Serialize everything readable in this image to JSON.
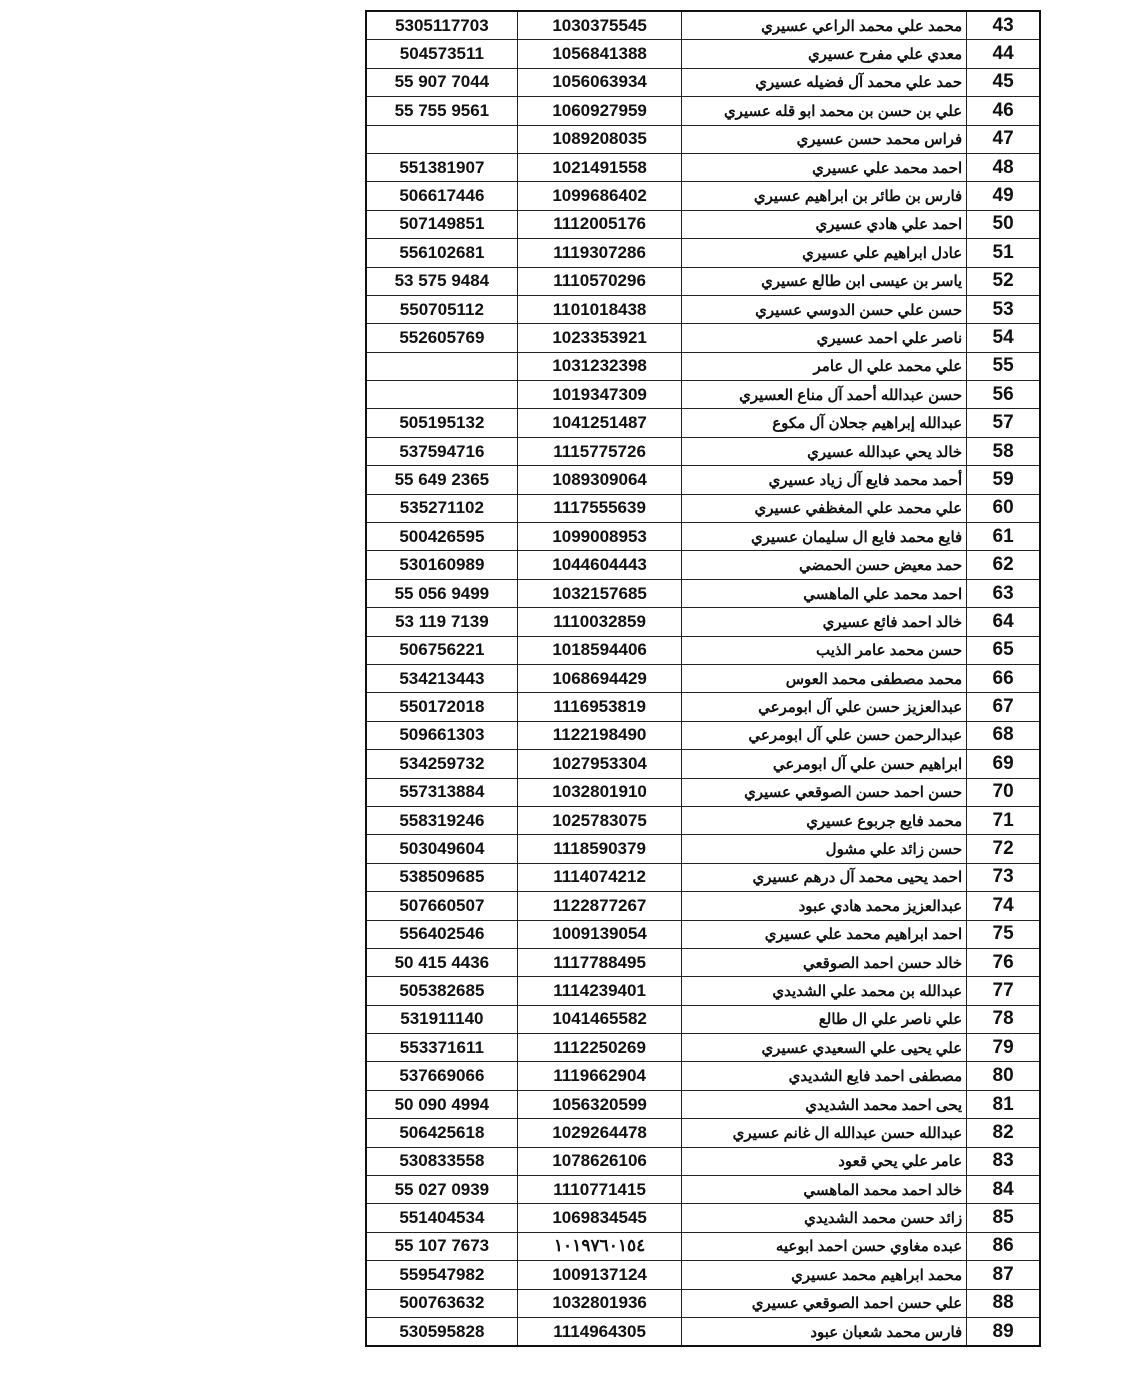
{
  "rows": [
    {
      "no": "43",
      "name": "محمد علي محمد الراعي عسيري",
      "id": "1030375545",
      "phone": "5305117703"
    },
    {
      "no": "44",
      "name": "معدي علي مفرح عسيري",
      "id": "1056841388",
      "phone": "504573511"
    },
    {
      "no": "45",
      "name": "حمد علي محمد آل فضيله عسيري",
      "id": "1056063934",
      "phone": "55 907 7044"
    },
    {
      "no": "46",
      "name": "علي بن حسن بن محمد ابو قله عسيري",
      "id": "1060927959",
      "phone": "55 755 9561"
    },
    {
      "no": "47",
      "name": "فراس محمد حسن عسيري",
      "id": "1089208035",
      "phone": ""
    },
    {
      "no": "48",
      "name": "احمد محمد علي عسيري",
      "id": "1021491558",
      "phone": "551381907"
    },
    {
      "no": "49",
      "name": "فارس بن طائر بن ابراهيم عسيري",
      "id": "1099686402",
      "phone": "506617446"
    },
    {
      "no": "50",
      "name": "احمد علي هادي عسيري",
      "id": "1112005176",
      "phone": "507149851"
    },
    {
      "no": "51",
      "name": "عادل ابراهيم علي عسيري",
      "id": "1119307286",
      "phone": "556102681"
    },
    {
      "no": "52",
      "name": "ياسر بن عيسى ابن طالع عسيري",
      "id": "1110570296",
      "phone": "53 575 9484"
    },
    {
      "no": "53",
      "name": "حسن علي حسن الدوسي عسيري",
      "id": "1101018438",
      "phone": "550705112"
    },
    {
      "no": "54",
      "name": "ناصر علي احمد عسيري",
      "id": "1023353921",
      "phone": "552605769"
    },
    {
      "no": "55",
      "name": "علي محمد علي ال عامر",
      "id": "1031232398",
      "phone": ""
    },
    {
      "no": "56",
      "name": "حسن عبدالله أحمد آل مناع العسيري",
      "id": "1019347309",
      "phone": ""
    },
    {
      "no": "57",
      "name": "عبدالله إبراهيم جحلان آل مكوع",
      "id": "1041251487",
      "phone": "505195132"
    },
    {
      "no": "58",
      "name": "خالد يحي عبدالله عسيري",
      "id": "1115775726",
      "phone": "537594716"
    },
    {
      "no": "59",
      "name": "أحمد محمد فايع آل زياد عسيري",
      "id": "1089309064",
      "phone": "55 649 2365"
    },
    {
      "no": "60",
      "name": "علي محمد علي المغظفي عسيري",
      "id": "1117555639",
      "phone": "535271102"
    },
    {
      "no": "61",
      "name": "فايع محمد فايع ال سليمان عسيري",
      "id": "1099008953",
      "phone": "500426595"
    },
    {
      "no": "62",
      "name": "حمد معيض حسن الحمضي",
      "id": "1044604443",
      "phone": "530160989"
    },
    {
      "no": "63",
      "name": "احمد محمد علي الماهسي",
      "id": "1032157685",
      "phone": "55 056 9499"
    },
    {
      "no": "64",
      "name": "خالد احمد فائع عسيري",
      "id": "1110032859",
      "phone": "53 119 7139"
    },
    {
      "no": "65",
      "name": "حسن محمد عامر الذيب",
      "id": "1018594406",
      "phone": "506756221"
    },
    {
      "no": "66",
      "name": "محمد مصطفى محمد العوس",
      "id": "1068694429",
      "phone": "534213443"
    },
    {
      "no": "67",
      "name": "عبدالعزيز حسن علي آل ابومرعي",
      "id": "1116953819",
      "phone": "550172018"
    },
    {
      "no": "68",
      "name": "عبدالرحمن حسن علي آل ابومرعي",
      "id": "1122198490",
      "phone": "509661303"
    },
    {
      "no": "69",
      "name": "ابراهيم حسن علي آل ابومرعي",
      "id": "1027953304",
      "phone": "534259732"
    },
    {
      "no": "70",
      "name": "حسن احمد حسن الصوقعي عسيري",
      "id": "1032801910",
      "phone": "557313884"
    },
    {
      "no": "71",
      "name": "محمد فايع جربوع عسيري",
      "id": "1025783075",
      "phone": "558319246"
    },
    {
      "no": "72",
      "name": "حسن زائد علي مشول",
      "id": "1118590379",
      "phone": "503049604"
    },
    {
      "no": "73",
      "name": "احمد يحيى محمد آل درهم عسيري",
      "id": "1114074212",
      "phone": "538509685"
    },
    {
      "no": "74",
      "name": "عبدالعزيز محمد هادي عبود",
      "id": "1122877267",
      "phone": "507660507"
    },
    {
      "no": "75",
      "name": "احمد ابراهيم محمد علي عسيري",
      "id": "1009139054",
      "phone": "556402546"
    },
    {
      "no": "76",
      "name": "خالد حسن احمد الصوقعي",
      "id": "1117788495",
      "phone": "50 415 4436"
    },
    {
      "no": "77",
      "name": "عبدالله بن محمد علي الشديدي",
      "id": "1114239401",
      "phone": "505382685"
    },
    {
      "no": "78",
      "name": "علي ناصر علي ال طالع",
      "id": "1041465582",
      "phone": "531911140"
    },
    {
      "no": "79",
      "name": "علي يحيى علي السعيدي عسيري",
      "id": "1112250269",
      "phone": "553371611"
    },
    {
      "no": "80",
      "name": "مصطفى احمد فايع الشديدي",
      "id": "1119662904",
      "phone": "537669066"
    },
    {
      "no": "81",
      "name": "يحى احمد محمد الشديدي",
      "id": "1056320599",
      "phone": "50 090 4994"
    },
    {
      "no": "82",
      "name": "عبدالله حسن عبدالله ال غانم عسيري",
      "id": "1029264478",
      "phone": "506425618"
    },
    {
      "no": "83",
      "name": "عامر علي يحي قعود",
      "id": "1078626106",
      "phone": "530833558"
    },
    {
      "no": "84",
      "name": "خالد احمد محمد الماهسي",
      "id": "1110771415",
      "phone": "55 027 0939"
    },
    {
      "no": "85",
      "name": "زائد حسن محمد الشديدي",
      "id": "1069834545",
      "phone": "551404534"
    },
    {
      "no": "86",
      "name": "عبده مغاوي حسن احمد ابوعيه",
      "id": "١٠١٩٧٦٠١٥٤",
      "phone": "55 107 7673"
    },
    {
      "no": "87",
      "name": "محمد ابراهيم محمد عسيري",
      "id": "1009137124",
      "phone": "559547982"
    },
    {
      "no": "88",
      "name": "علي حسن احمد الصوقعي عسيري",
      "id": "1032801936",
      "phone": "500763632"
    },
    {
      "no": "89",
      "name": "فارس محمد شعبان عبود",
      "id": "1114964305",
      "phone": "530595828"
    }
  ]
}
